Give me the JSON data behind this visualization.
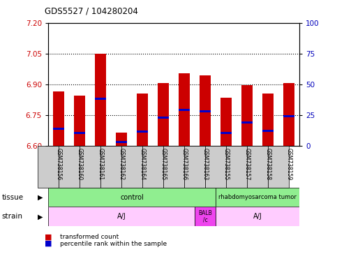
{
  "title": "GDS5527 / 104280204",
  "samples": [
    "GSM738156",
    "GSM738160",
    "GSM738161",
    "GSM738162",
    "GSM738164",
    "GSM738165",
    "GSM738166",
    "GSM738163",
    "GSM738155",
    "GSM738157",
    "GSM738158",
    "GSM738159"
  ],
  "bar_bottom": 6.6,
  "bar_tops": [
    6.865,
    6.845,
    7.05,
    6.665,
    6.855,
    6.905,
    6.955,
    6.945,
    6.835,
    6.895,
    6.855,
    6.905
  ],
  "blue_markers": [
    6.685,
    6.665,
    6.83,
    6.62,
    6.67,
    6.74,
    6.775,
    6.77,
    6.665,
    6.715,
    6.675,
    6.745
  ],
  "ylim_left": [
    6.6,
    7.2
  ],
  "ylim_right": [
    0,
    100
  ],
  "yticks_left": [
    6.6,
    6.75,
    6.9,
    7.05,
    7.2
  ],
  "yticks_right": [
    0,
    25,
    50,
    75,
    100
  ],
  "bar_color": "#cc0000",
  "blue_color": "#0000cc",
  "grid_color": "#000000",
  "tissue_control_count": 8,
  "tissue_tumor_count": 4,
  "strain_AJ1_count": 7,
  "strain_BALB_count": 1,
  "strain_AJ2_count": 4,
  "tissue_row_color_control": "#90ee90",
  "tissue_row_color_tumor": "#90ee90",
  "strain_row_color_AJ": "#ffccff",
  "strain_row_color_BALB": "#ee44ee",
  "legend_items": [
    {
      "label": "transformed count",
      "color": "#cc0000"
    },
    {
      "label": "percentile rank within the sample",
      "color": "#0000cc"
    }
  ],
  "background_color": "#ffffff",
  "tick_label_color_left": "#cc0000",
  "tick_label_color_right": "#0000bb",
  "label_box_color": "#cccccc"
}
